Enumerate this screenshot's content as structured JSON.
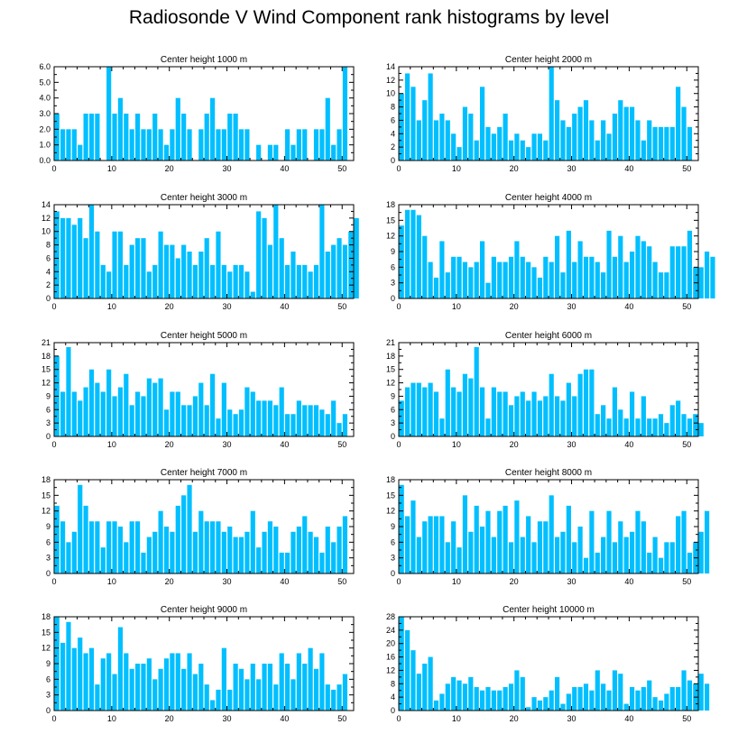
{
  "figure_title": "Radiosonde V Wind Component rank histograms by level",
  "chart_data": [
    {
      "type": "bar",
      "title": "Center height 1000 m",
      "xlim": [
        0,
        52
      ],
      "ylim": [
        0,
        6
      ],
      "xticks": [
        0,
        10,
        20,
        30,
        40,
        50
      ],
      "yticks": [
        "0.0",
        "1.0",
        "2.0",
        "3.0",
        "4.0",
        "5.0",
        "6.0"
      ],
      "values": [
        3,
        2,
        2,
        2,
        1,
        3,
        3,
        3,
        0,
        6,
        3,
        4,
        3,
        2,
        3,
        2,
        2,
        3,
        2,
        1,
        2,
        4,
        3,
        2,
        0,
        2,
        3,
        4,
        2,
        2,
        3,
        3,
        2,
        2,
        0,
        1,
        0,
        1,
        1,
        0,
        2,
        1,
        2,
        2,
        0,
        2,
        2,
        4,
        1,
        2,
        6
      ]
    },
    {
      "type": "bar",
      "title": "Center height 2000 m",
      "xlim": [
        0,
        52
      ],
      "ylim": [
        0,
        14
      ],
      "xticks": [
        0,
        10,
        20,
        30,
        40,
        50
      ],
      "yticks": [
        "0",
        "2",
        "4",
        "6",
        "8",
        "10",
        "12",
        "14"
      ],
      "values": [
        10,
        13,
        11,
        6,
        9,
        13,
        6,
        7,
        6,
        4,
        2,
        8,
        7,
        3,
        11,
        5,
        4,
        5,
        7,
        3,
        4,
        3,
        2,
        4,
        4,
        3,
        14,
        9,
        6,
        5,
        7,
        8,
        9,
        6,
        3,
        6,
        4,
        7,
        9,
        8,
        8,
        6,
        3,
        6,
        5,
        5,
        5,
        5,
        11,
        8,
        5
      ]
    },
    {
      "type": "bar",
      "title": "Center height 3000 m",
      "xlim": [
        0,
        52
      ],
      "ylim": [
        0,
        14
      ],
      "xticks": [
        0,
        10,
        20,
        30,
        40,
        50
      ],
      "yticks": [
        "0",
        "2",
        "4",
        "6",
        "8",
        "10",
        "12",
        "14"
      ],
      "values": [
        13,
        12,
        12,
        11,
        12,
        9,
        14,
        10,
        5,
        4,
        10,
        10,
        5,
        8,
        9,
        9,
        4,
        5,
        10,
        8,
        8,
        6,
        8,
        7,
        5,
        7,
        9,
        5,
        10,
        5,
        4,
        5,
        5,
        4,
        1,
        13,
        12,
        8,
        14,
        9,
        5,
        7,
        5,
        5,
        4,
        5,
        14,
        7,
        8,
        9,
        8,
        10,
        12
      ]
    },
    {
      "type": "bar",
      "title": "Center height 4000 m",
      "xlim": [
        0,
        52
      ],
      "ylim": [
        0,
        18
      ],
      "xticks": [
        0,
        10,
        20,
        30,
        40,
        50
      ],
      "yticks": [
        "0",
        "3",
        "6",
        "9",
        "12",
        "15",
        "18"
      ],
      "values": [
        14,
        17,
        17,
        16,
        12,
        7,
        4,
        11,
        5,
        8,
        8,
        7,
        6,
        7,
        11,
        3,
        8,
        7,
        7,
        8,
        11,
        8,
        7,
        6,
        4,
        8,
        7,
        12,
        5,
        13,
        7,
        11,
        8,
        8,
        7,
        5,
        13,
        8,
        12,
        7,
        9,
        12,
        11,
        10,
        7,
        5,
        5,
        10,
        10,
        10,
        13,
        6,
        6,
        9,
        8
      ]
    },
    {
      "type": "bar",
      "title": "Center height 5000 m",
      "xlim": [
        0,
        52
      ],
      "ylim": [
        0,
        21
      ],
      "xticks": [
        0,
        10,
        20,
        30,
        40,
        50
      ],
      "yticks": [
        "0",
        "3",
        "6",
        "9",
        "12",
        "15",
        "18",
        "21"
      ],
      "values": [
        18,
        10,
        20,
        10,
        8,
        11,
        15,
        12,
        10,
        15,
        9,
        11,
        14,
        7,
        10,
        9,
        13,
        12,
        13,
        6,
        10,
        10,
        7,
        7,
        9,
        12,
        7,
        14,
        4,
        12,
        6,
        5,
        6,
        11,
        10,
        8,
        8,
        8,
        7,
        11,
        5,
        5,
        8,
        7,
        7,
        7,
        6,
        5,
        8,
        3,
        5
      ]
    },
    {
      "type": "bar",
      "title": "Center height 6000 m",
      "xlim": [
        0,
        52
      ],
      "ylim": [
        0,
        21
      ],
      "xticks": [
        0,
        10,
        20,
        30,
        40,
        50
      ],
      "yticks": [
        "0",
        "3",
        "6",
        "9",
        "12",
        "15",
        "18",
        "21"
      ],
      "values": [
        8,
        11,
        12,
        12,
        11,
        12,
        10,
        4,
        15,
        11,
        10,
        14,
        13,
        20,
        11,
        4,
        11,
        10,
        10,
        7,
        9,
        10,
        8,
        10,
        8,
        9,
        14,
        9,
        8,
        12,
        9,
        14,
        15,
        15,
        5,
        7,
        4,
        11,
        6,
        4,
        10,
        4,
        9,
        4,
        4,
        5,
        3,
        7,
        8,
        5,
        4,
        5,
        3
      ]
    },
    {
      "type": "bar",
      "title": "Center height 7000 m",
      "xlim": [
        0,
        52
      ],
      "ylim": [
        0,
        18
      ],
      "xticks": [
        0,
        10,
        20,
        30,
        40,
        50
      ],
      "yticks": [
        "0",
        "3",
        "6",
        "9",
        "12",
        "15",
        "18"
      ],
      "values": [
        13,
        10,
        6,
        8,
        17,
        13,
        10,
        10,
        5,
        10,
        10,
        9,
        6,
        10,
        10,
        4,
        7,
        8,
        12,
        9,
        8,
        13,
        15,
        17,
        8,
        12,
        10,
        10,
        10,
        8,
        9,
        7,
        7,
        8,
        12,
        5,
        8,
        10,
        9,
        4,
        4,
        8,
        9,
        11,
        8,
        7,
        4,
        9,
        6,
        9,
        11
      ]
    },
    {
      "type": "bar",
      "title": "Center height 8000 m",
      "xlim": [
        0,
        52
      ],
      "ylim": [
        0,
        18
      ],
      "xticks": [
        0,
        10,
        20,
        30,
        40,
        50
      ],
      "yticks": [
        "0",
        "3",
        "6",
        "9",
        "12",
        "15",
        "18"
      ],
      "values": [
        17,
        11,
        14,
        7,
        10,
        11,
        11,
        11,
        6,
        10,
        5,
        15,
        8,
        13,
        9,
        12,
        7,
        12,
        13,
        6,
        14,
        7,
        11,
        6,
        10,
        10,
        15,
        7,
        8,
        13,
        6,
        9,
        3,
        12,
        4,
        7,
        12,
        6,
        10,
        7,
        8,
        12,
        10,
        4,
        7,
        3,
        6,
        6,
        11,
        12,
        4,
        6,
        8,
        12
      ]
    },
    {
      "type": "bar",
      "title": "Center height 9000 m",
      "xlim": [
        0,
        52
      ],
      "ylim": [
        0,
        18
      ],
      "xticks": [
        0,
        10,
        20,
        30,
        40,
        50
      ],
      "yticks": [
        "0",
        "3",
        "6",
        "9",
        "12",
        "15",
        "18"
      ],
      "values": [
        18,
        13,
        17,
        12,
        14,
        11,
        12,
        5,
        10,
        11,
        7,
        16,
        11,
        8,
        9,
        9,
        10,
        6,
        8,
        10,
        11,
        11,
        8,
        11,
        7,
        9,
        5,
        2,
        4,
        12,
        4,
        9,
        8,
        6,
        9,
        6,
        9,
        9,
        5,
        11,
        9,
        6,
        11,
        9,
        12,
        8,
        11,
        5,
        4,
        5,
        7
      ]
    },
    {
      "type": "bar",
      "title": "Center height 10000 m",
      "xlim": [
        0,
        52
      ],
      "ylim": [
        0,
        28
      ],
      "xticks": [
        0,
        10,
        20,
        30,
        40,
        50
      ],
      "yticks": [
        "0",
        "4",
        "8",
        "12",
        "16",
        "20",
        "24",
        "28"
      ],
      "values": [
        28,
        24,
        18,
        11,
        14,
        16,
        3,
        5,
        8,
        10,
        9,
        8,
        10,
        7,
        6,
        7,
        6,
        6,
        7,
        8,
        12,
        10,
        1,
        4,
        3,
        4,
        6,
        10,
        2,
        5,
        7,
        7,
        8,
        6,
        12,
        8,
        6,
        12,
        11,
        2,
        7,
        6,
        7,
        9,
        4,
        3,
        5,
        7,
        7,
        12,
        9,
        8,
        11,
        8
      ]
    }
  ]
}
